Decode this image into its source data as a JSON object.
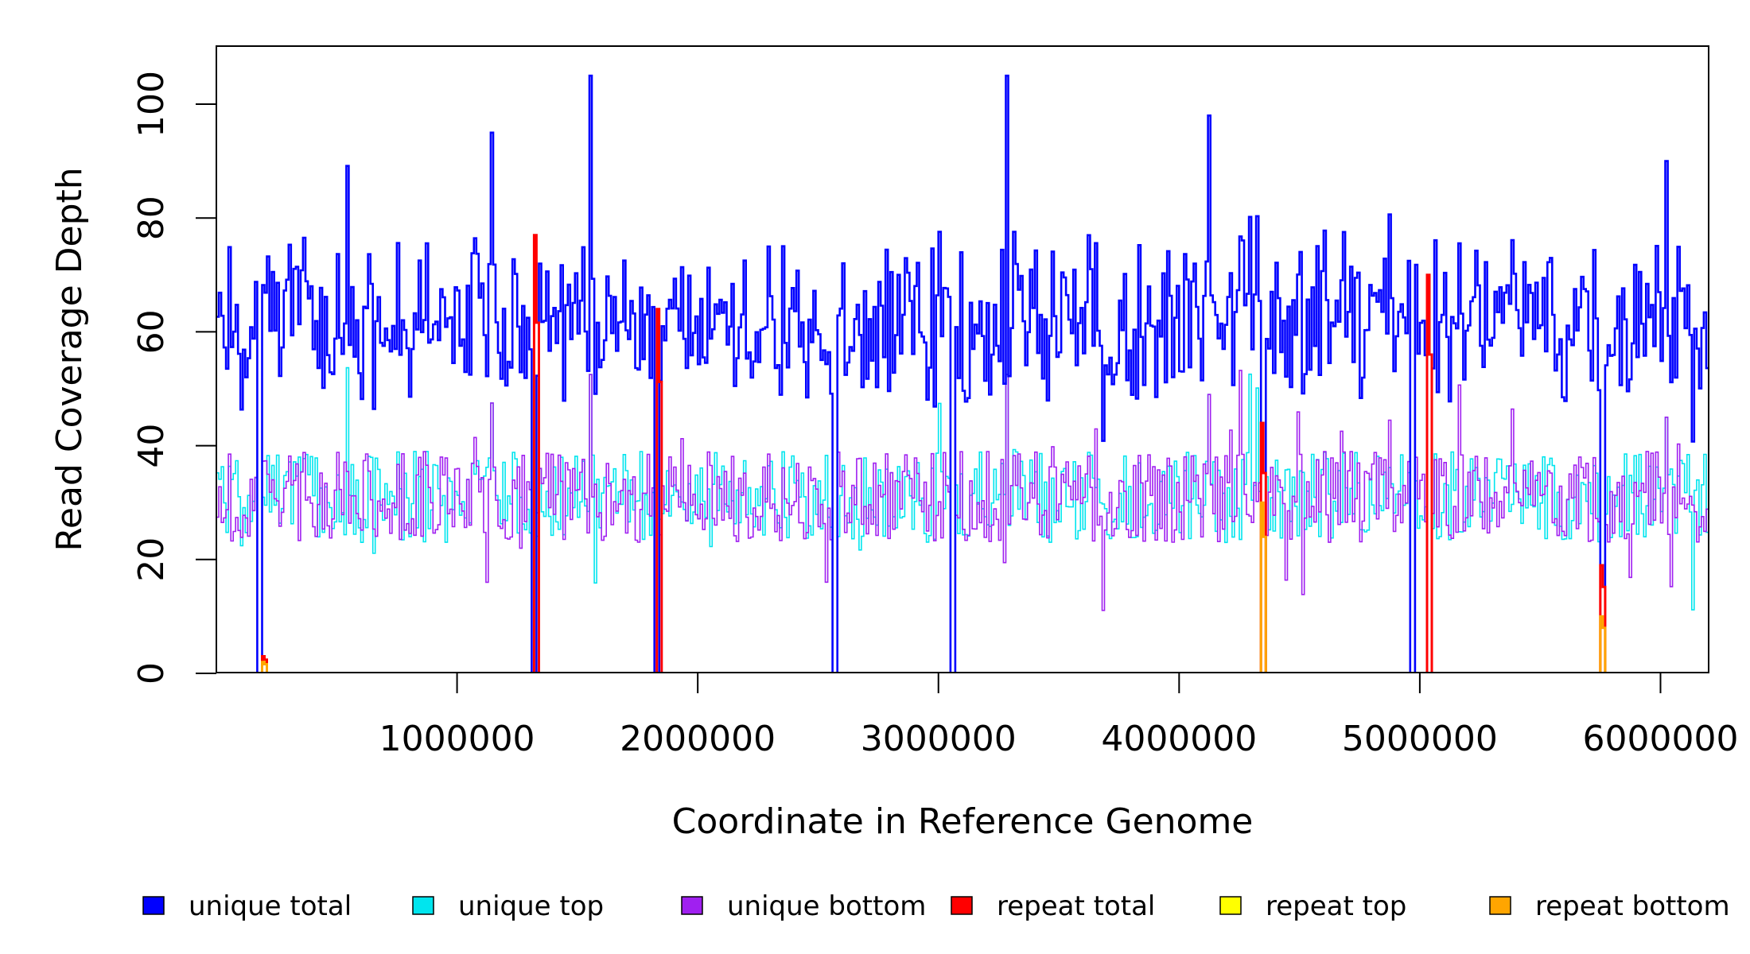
{
  "chart_data": {
    "type": "line",
    "title": "",
    "xlabel": "Coordinate in Reference Genome",
    "ylabel": "Read Coverage Depth",
    "xlim": [
      0,
      6200000
    ],
    "ylim": [
      0,
      110
    ],
    "xticks": [
      1000000,
      2000000,
      3000000,
      4000000,
      5000000,
      6000000
    ],
    "xtick_labels": [
      "1000000",
      "2000000",
      "3000000",
      "4000000",
      "5000000",
      "6000000"
    ],
    "yticks": [
      0,
      20,
      40,
      60,
      80,
      100
    ],
    "ytick_labels": [
      "0",
      "20",
      "40",
      "60",
      "80",
      "100"
    ],
    "legend_position": "bottom",
    "bin_width": 10000,
    "colors": {
      "unique_total": "#0000ff",
      "unique_top": "#00e5ee",
      "unique_bottom": "#a020f0",
      "repeat_total": "#ff0000",
      "repeat_top": "#ffff00",
      "repeat_bottom": "#ffa500"
    },
    "series": [
      {
        "name": "unique total",
        "color": "#0000ff",
        "baseline": 62,
        "variation": 14,
        "max_peak": 105
      },
      {
        "name": "unique top",
        "color": "#00e5ee",
        "baseline": 31,
        "variation": 8
      },
      {
        "name": "unique bottom",
        "color": "#a020f0",
        "baseline": 31,
        "variation": 8
      },
      {
        "name": "repeat total",
        "color": "#ff0000",
        "baseline": 0
      },
      {
        "name": "repeat top",
        "color": "#ffff00",
        "baseline": 0
      },
      {
        "name": "repeat bottom",
        "color": "#ffa500",
        "baseline": 0
      }
    ],
    "dropouts": [
      165000,
      1310000,
      1820000,
      2560000,
      3050000,
      4340000,
      4960000,
      5030000,
      5750000
    ],
    "peaks": [
      {
        "x": 1550000,
        "y": 105
      },
      {
        "x": 3280000,
        "y": 105
      },
      {
        "x": 1140000,
        "y": 95
      },
      {
        "x": 4120000,
        "y": 98
      },
      {
        "x": 6020000,
        "y": 90
      }
    ],
    "repeat_peaks": [
      {
        "x": 190000,
        "total": 3,
        "bottom": 2
      },
      {
        "x": 1320000,
        "total": 77,
        "bottom": 0
      },
      {
        "x": 1825000,
        "total": 64,
        "bottom": 0
      },
      {
        "x": 4340000,
        "total": 44,
        "bottom": 30
      },
      {
        "x": 5030000,
        "total": 70,
        "bottom": 0
      },
      {
        "x": 5750000,
        "total": 19,
        "bottom": 10
      }
    ]
  },
  "legend": {
    "items": [
      {
        "label": "unique total",
        "color": "#0000ff"
      },
      {
        "label": "unique top",
        "color": "#00e5ee"
      },
      {
        "label": "unique bottom",
        "color": "#a020f0"
      },
      {
        "label": "repeat total",
        "color": "#ff0000"
      },
      {
        "label": "repeat top",
        "color": "#ffff00"
      },
      {
        "label": "repeat bottom",
        "color": "#ffa500"
      }
    ]
  }
}
